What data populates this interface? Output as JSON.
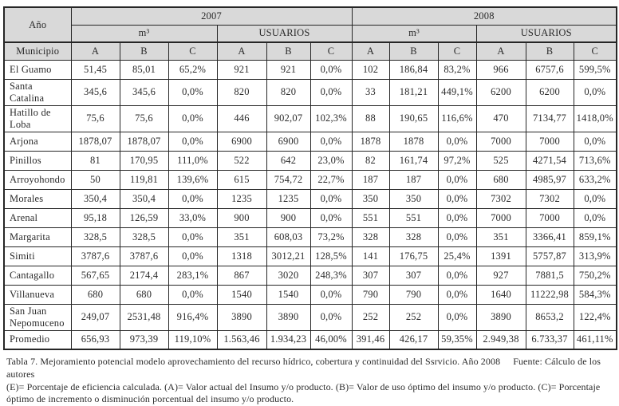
{
  "table": {
    "corner_label": "Año",
    "municipio_label": "Municipio",
    "years": [
      "2007",
      "2008"
    ],
    "unit_m3": "m³",
    "unit_usuarios": "USUARIOS",
    "col_headers": [
      "A",
      "B",
      "C"
    ],
    "rows": [
      {
        "municipio": "El Guamo",
        "values": [
          "51,45",
          "85,01",
          "65,2%",
          "921",
          "921",
          "0,0%",
          "102",
          "186,84",
          "83,2%",
          "966",
          "6757,6",
          "599,5%"
        ]
      },
      {
        "municipio": "Santa Catalina",
        "values": [
          "345,6",
          "345,6",
          "0,0%",
          "820",
          "820",
          "0,0%",
          "33",
          "181,21",
          "449,1%",
          "6200",
          "6200",
          "0,0%"
        ]
      },
      {
        "municipio": "Hatillo de Loba",
        "values": [
          "75,6",
          "75,6",
          "0,0%",
          "446",
          "902,07",
          "102,3%",
          "88",
          "190,65",
          "116,6%",
          "470",
          "7134,77",
          "1418,0%"
        ]
      },
      {
        "municipio": "Arjona",
        "values": [
          "1878,07",
          "1878,07",
          "0,0%",
          "6900",
          "6900",
          "0,0%",
          "1878",
          "1878",
          "0,0%",
          "7000",
          "7000",
          "0,0%"
        ]
      },
      {
        "municipio": "Pinillos",
        "values": [
          "81",
          "170,95",
          "111,0%",
          "522",
          "642",
          "23,0%",
          "82",
          "161,74",
          "97,2%",
          "525",
          "4271,54",
          "713,6%"
        ]
      },
      {
        "municipio": "Arroyohondo",
        "values": [
          "50",
          "119,81",
          "139,6%",
          "615",
          "754,72",
          "22,7%",
          "187",
          "187",
          "0,0%",
          "680",
          "4985,97",
          "633,2%"
        ]
      },
      {
        "municipio": "Morales",
        "values": [
          "350,4",
          "350,4",
          "0,0%",
          "1235",
          "1235",
          "0,0%",
          "350",
          "350",
          "0,0%",
          "7302",
          "7302",
          "0,0%"
        ]
      },
      {
        "municipio": "Arenal",
        "values": [
          "95,18",
          "126,59",
          "33,0%",
          "900",
          "900",
          "0,0%",
          "551",
          "551",
          "0,0%",
          "7000",
          "7000",
          "0,0%"
        ]
      },
      {
        "municipio": "Margarita",
        "values": [
          "328,5",
          "328,5",
          "0,0%",
          "351",
          "608,03",
          "73,2%",
          "328",
          "328",
          "0,0%",
          "351",
          "3366,41",
          "859,1%"
        ]
      },
      {
        "municipio": "Simiti",
        "values": [
          "3787,6",
          "3787,6",
          "0,0%",
          "1318",
          "3012,21",
          "128,5%",
          "141",
          "176,75",
          "25,4%",
          "1391",
          "5757,87",
          "313,9%"
        ]
      },
      {
        "municipio": "Cantagallo",
        "values": [
          "567,65",
          "2174,4",
          "283,1%",
          "867",
          "3020",
          "248,3%",
          "307",
          "307",
          "0,0%",
          "927",
          "7881,5",
          "750,2%"
        ]
      },
      {
        "municipio": "Villanueva",
        "values": [
          "680",
          "680",
          "0,0%",
          "1540",
          "1540",
          "0,0%",
          "790",
          "790",
          "0,0%",
          "1640",
          "11222,98",
          "584,3%"
        ]
      },
      {
        "municipio": "San Juan Nepomuceno",
        "values": [
          "249,07",
          "2531,48",
          "916,4%",
          "3890",
          "3890",
          "0,0%",
          "252",
          "252",
          "0,0%",
          "3890",
          "8653,2",
          "122,4%"
        ]
      },
      {
        "municipio": "Promedio",
        "values": [
          "656,93",
          "973,39",
          "119,10%",
          "1.563,46",
          "1.934,23",
          "46,00%",
          "391,46",
          "426,17",
          "59,35%",
          "2.949,38",
          "6.733,37",
          "461,11%"
        ]
      }
    ]
  },
  "caption": {
    "title": "Tabla 7. Mejoramiento potencial modelo aprovechamiento del recurso hídrico, cobertura y continuidad del Ssrvicio. Año 2008",
    "source": "Fuente: Cálculo de los autores",
    "legend": "(E)= Porcentaje de eficiencia calculada. (A)= Valor actual del Insumo y/o producto. (B)= Valor de uso óptimo del insumo y/o producto. (C)= Porcentaje óptimo de incremento o disminución porcentual del insumo y/o producto."
  },
  "colors": {
    "header_bg": "#d9d9d9",
    "border": "#262626",
    "text": "#2b2b2b"
  }
}
